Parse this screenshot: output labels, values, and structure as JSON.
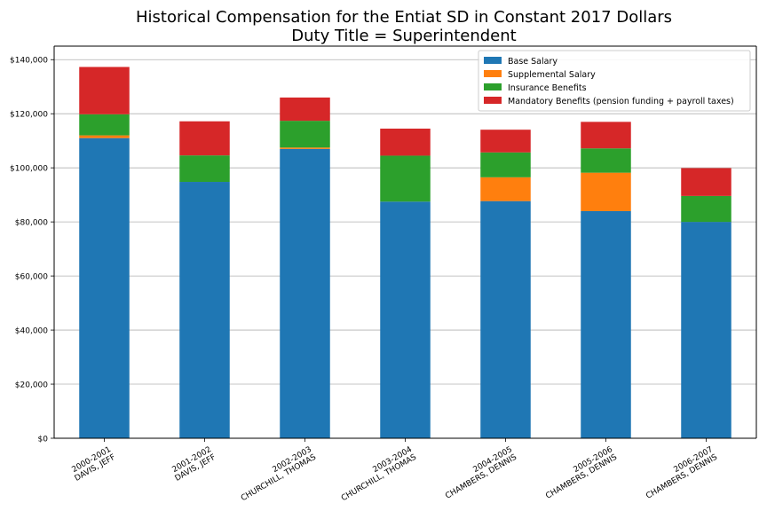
{
  "chart_data": {
    "type": "bar",
    "stacked": true,
    "title": "Historical Compensation for the Entiat SD in Constant 2017 Dollars",
    "subtitle": "Duty Title = Superintendent",
    "xlabel": "",
    "ylabel": "",
    "ylim": [
      0,
      145000
    ],
    "yticks": [
      0,
      20000,
      40000,
      60000,
      80000,
      100000,
      120000,
      140000
    ],
    "ytick_labels": [
      "$0",
      "$20,000",
      "$40,000",
      "$60,000",
      "$80,000",
      "$100,000",
      "$120,000",
      "$140,000"
    ],
    "grid": "horizontal",
    "legend_position": "top-right",
    "categories": [
      [
        "2000-2001",
        "DAVIS, JEFF"
      ],
      [
        "2001-2002",
        "DAVIS, JEFF"
      ],
      [
        "2002-2003",
        "CHURCHILL, THOMAS"
      ],
      [
        "2003-2004",
        "CHURCHILL, THOMAS"
      ],
      [
        "2004-2005",
        "CHAMBERS, DENNIS"
      ],
      [
        "2005-2006",
        "CHAMBERS, DENNIS"
      ],
      [
        "2006-2007",
        "CHAMBERS, DENNIS"
      ]
    ],
    "series": [
      {
        "name": "Base Salary",
        "color": "#1f77b4",
        "values": [
          111000,
          94800,
          107000,
          87500,
          87700,
          84000,
          80000
        ]
      },
      {
        "name": "Supplemental Salary",
        "color": "#ff7f0e",
        "values": [
          1000,
          0,
          500,
          0,
          8800,
          14200,
          0
        ]
      },
      {
        "name": "Insurance Benefits",
        "color": "#2ca02c",
        "values": [
          7800,
          9800,
          9900,
          17000,
          9200,
          9000,
          9600
        ]
      },
      {
        "name": "Mandatory Benefits (pension funding + payroll taxes)",
        "color": "#d62728",
        "values": [
          17500,
          12600,
          8600,
          10000,
          8400,
          9800,
          10300
        ]
      }
    ]
  }
}
